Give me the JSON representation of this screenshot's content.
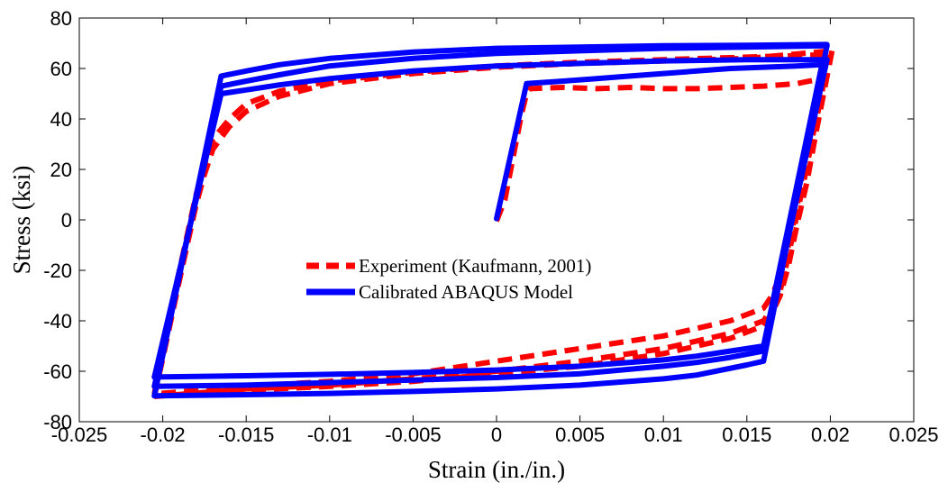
{
  "chart_data": {
    "type": "line",
    "title": "",
    "xlabel": "Strain (in./in.)",
    "ylabel": "Stress (ksi)",
    "xlim": [
      -0.025,
      0.025
    ],
    "ylim": [
      -80,
      80
    ],
    "x_ticks": [
      -0.025,
      -0.02,
      -0.015,
      -0.01,
      -0.005,
      0,
      0.005,
      0.01,
      0.015,
      0.02,
      0.025
    ],
    "x_tick_labels": [
      "-0.025",
      "-0.02",
      "-0.015",
      "-0.01",
      "-0.005",
      "0",
      "0.005",
      "0.01",
      "0.015",
      "0.02",
      "0.025"
    ],
    "y_ticks": [
      -80,
      -60,
      -40,
      -20,
      0,
      20,
      40,
      60,
      80
    ],
    "y_tick_labels": [
      "-80",
      "-60",
      "-40",
      "-20",
      "0",
      "20",
      "40",
      "60",
      "80"
    ],
    "grid": false,
    "legend_position": "center",
    "series": [
      {
        "name": "Experiment (Kaufmann, 2001)",
        "color": "#ff0000",
        "style": "dashed",
        "segments": [
          [
            [
              0,
              -0.5
            ],
            [
              0.0005,
              8
            ],
            [
              0.001,
              25
            ],
            [
              0.0015,
              42
            ],
            [
              0.0018,
              50
            ],
            [
              0.002,
              52
            ],
            [
              0.004,
              52.5
            ],
            [
              0.006,
              52
            ],
            [
              0.008,
              52.5
            ],
            [
              0.01,
              52
            ],
            [
              0.012,
              52
            ],
            [
              0.014,
              52.5
            ],
            [
              0.016,
              53
            ],
            [
              0.018,
              54
            ],
            [
              0.0195,
              56
            ]
          ],
          [
            [
              0.0195,
              56
            ],
            [
              0.019,
              45
            ],
            [
              0.0185,
              25
            ],
            [
              0.018,
              5
            ],
            [
              0.0175,
              -10
            ],
            [
              0.017,
              -22
            ],
            [
              0.0165,
              -30
            ],
            [
              0.016,
              -35
            ],
            [
              0.014,
              -40
            ],
            [
              0.012,
              -43
            ],
            [
              0.01,
              -46
            ],
            [
              0.005,
              -51
            ],
            [
              0,
              -56
            ],
            [
              -0.005,
              -61
            ],
            [
              -0.01,
              -64
            ],
            [
              -0.015,
              -66
            ],
            [
              -0.0205,
              -69
            ]
          ],
          [
            [
              -0.0205,
              -69
            ],
            [
              -0.02,
              -50
            ],
            [
              -0.019,
              -20
            ],
            [
              -0.018,
              10
            ],
            [
              -0.0175,
              22
            ],
            [
              -0.017,
              32
            ],
            [
              -0.016,
              40
            ],
            [
              -0.015,
              46
            ],
            [
              -0.013,
              51
            ],
            [
              -0.01,
              55
            ],
            [
              -0.005,
              58.5
            ],
            [
              0,
              61
            ],
            [
              0.005,
              62.5
            ],
            [
              0.01,
              63.5
            ],
            [
              0.015,
              64.5
            ],
            [
              0.0198,
              65.5
            ]
          ],
          [
            [
              0.0198,
              65.5
            ],
            [
              0.0195,
              50
            ],
            [
              0.019,
              35
            ],
            [
              0.0185,
              18
            ],
            [
              0.018,
              2
            ],
            [
              0.0175,
              -14
            ],
            [
              0.017,
              -28
            ],
            [
              0.0165,
              -35
            ],
            [
              0.016,
              -40
            ],
            [
              0.014,
              -45
            ],
            [
              0.012,
              -48
            ],
            [
              0.01,
              -51
            ],
            [
              0.005,
              -56
            ],
            [
              0,
              -60
            ],
            [
              -0.005,
              -63
            ],
            [
              -0.01,
              -65.5
            ],
            [
              -0.015,
              -67
            ],
            [
              -0.0205,
              -70
            ]
          ],
          [
            [
              -0.0205,
              -70
            ],
            [
              -0.02,
              -55
            ],
            [
              -0.019,
              -24
            ],
            [
              -0.018,
              6
            ],
            [
              -0.0175,
              18
            ],
            [
              -0.017,
              28
            ],
            [
              -0.016,
              37
            ],
            [
              -0.015,
              43
            ],
            [
              -0.013,
              49
            ],
            [
              -0.01,
              54
            ],
            [
              -0.005,
              58
            ],
            [
              0,
              60.5
            ],
            [
              0.005,
              62
            ],
            [
              0.01,
              63
            ],
            [
              0.015,
              64
            ],
            [
              0.0201,
              67
            ]
          ],
          [
            [
              0.0201,
              67
            ],
            [
              0.0196,
              50
            ],
            [
              0.0191,
              33
            ],
            [
              0.0186,
              15
            ],
            [
              0.018,
              -2
            ],
            [
              0.0175,
              -18
            ],
            [
              0.017,
              -30
            ],
            [
              0.0165,
              -37
            ],
            [
              0.016,
              -42
            ],
            [
              0.014,
              -47
            ],
            [
              0.012,
              -50
            ],
            [
              0.01,
              -53
            ],
            [
              0.005,
              -58
            ],
            [
              0,
              -61
            ],
            [
              -0.005,
              -64
            ],
            [
              -0.01,
              -66
            ],
            [
              -0.015,
              -67.5
            ],
            [
              -0.0205,
              -69.5
            ]
          ]
        ]
      },
      {
        "name": "Calibrated ABAQUS Model",
        "color": "#0000ff",
        "style": "solid",
        "segments": [
          [
            [
              0,
              0.5
            ],
            [
              0.0018,
              54
            ],
            [
              0.004,
              55
            ],
            [
              0.006,
              56
            ],
            [
              0.008,
              57
            ],
            [
              0.01,
              58
            ],
            [
              0.012,
              59
            ],
            [
              0.014,
              60
            ],
            [
              0.016,
              60.5
            ],
            [
              0.018,
              61
            ],
            [
              0.0195,
              61.5
            ]
          ],
          [
            [
              0.0195,
              61.5
            ],
            [
              0.016,
              -50
            ],
            [
              0.014,
              -52
            ],
            [
              0.012,
              -54
            ],
            [
              0.01,
              -55.5
            ],
            [
              0.005,
              -58
            ],
            [
              0,
              -59.5
            ],
            [
              -0.005,
              -60.5
            ],
            [
              -0.01,
              -61.2
            ],
            [
              -0.015,
              -61.8
            ],
            [
              -0.0205,
              -62.3
            ]
          ],
          [
            [
              -0.0205,
              -62.3
            ],
            [
              -0.0165,
              50
            ],
            [
              -0.015,
              51.5
            ],
            [
              -0.013,
              53.5
            ],
            [
              -0.01,
              56
            ],
            [
              -0.005,
              59
            ],
            [
              0,
              61
            ],
            [
              0.005,
              62
            ],
            [
              0.01,
              63
            ],
            [
              0.015,
              63.5
            ],
            [
              0.0198,
              63.5
            ]
          ],
          [
            [
              0.0198,
              63.5
            ],
            [
              0.016,
              -52
            ],
            [
              0.014,
              -54.5
            ],
            [
              0.012,
              -56.5
            ],
            [
              0.01,
              -58
            ],
            [
              0.005,
              -61
            ],
            [
              0,
              -62.5
            ],
            [
              -0.005,
              -63.5
            ],
            [
              -0.01,
              -64.5
            ],
            [
              -0.015,
              -65.5
            ],
            [
              -0.0205,
              -66
            ]
          ],
          [
            [
              -0.0205,
              -66
            ],
            [
              -0.0165,
              53
            ],
            [
              -0.015,
              55
            ],
            [
              -0.013,
              57.5
            ],
            [
              -0.01,
              61
            ],
            [
              -0.005,
              64
            ],
            [
              0,
              66
            ],
            [
              0.005,
              67
            ],
            [
              0.01,
              68
            ],
            [
              0.015,
              68.5
            ],
            [
              0.0198,
              69
            ]
          ],
          [
            [
              0.0198,
              69
            ],
            [
              0.016,
              -56
            ],
            [
              0.015,
              -57.5
            ],
            [
              0.012,
              -61.5
            ],
            [
              0.01,
              -63
            ],
            [
              0.005,
              -65.5
            ],
            [
              0,
              -67
            ],
            [
              -0.005,
              -68
            ],
            [
              -0.01,
              -68.8
            ],
            [
              -0.015,
              -69.3
            ],
            [
              -0.0205,
              -69.7
            ]
          ],
          [
            [
              -0.0205,
              -69.7
            ],
            [
              -0.0165,
              57
            ],
            [
              -0.015,
              59
            ],
            [
              -0.013,
              61.5
            ],
            [
              -0.01,
              64
            ],
            [
              -0.005,
              66.5
            ],
            [
              0,
              68
            ],
            [
              0.005,
              68.5
            ],
            [
              0.01,
              69
            ],
            [
              0.015,
              69.2
            ],
            [
              0.0198,
              69.5
            ]
          ]
        ]
      }
    ]
  }
}
